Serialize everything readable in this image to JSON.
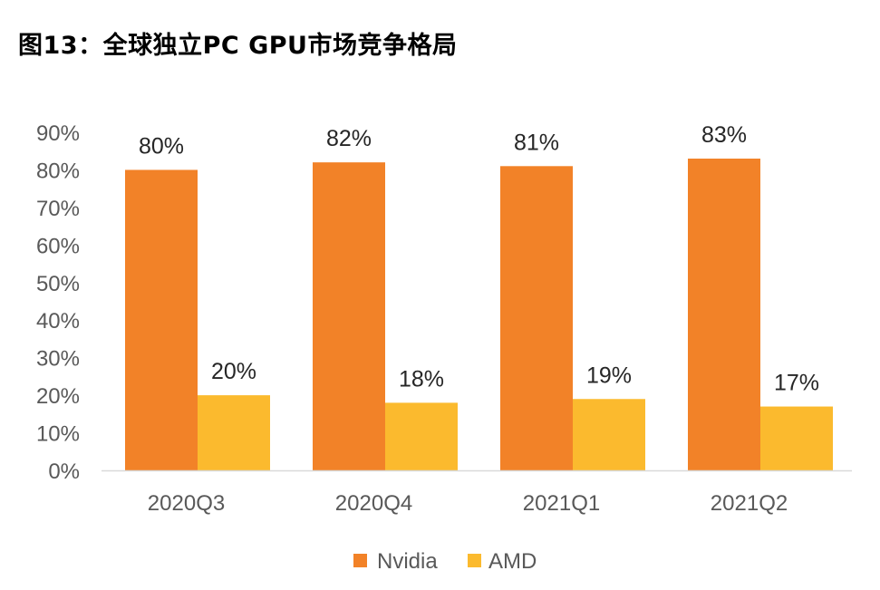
{
  "figure": {
    "title": "图13：全球独立PC GPU市场竞争格局"
  },
  "chart_data": {
    "type": "bar",
    "title": "图13：全球独立PC GPU市场竞争格局",
    "xlabel": "",
    "ylabel": "",
    "categories": [
      "2020Q3",
      "2020Q4",
      "2021Q1",
      "2021Q2"
    ],
    "series": [
      {
        "name": "Nvidia",
        "values": [
          80,
          82,
          81,
          83
        ],
        "labels": [
          "80%",
          "82%",
          "81%",
          "83%"
        ],
        "color": "#F28228"
      },
      {
        "name": "AMD",
        "values": [
          20,
          18,
          19,
          17
        ],
        "labels": [
          "20%",
          "18%",
          "19%",
          "17%"
        ],
        "color": "#FBBA2E"
      }
    ],
    "ylim": [
      0,
      90
    ],
    "yticks": [
      0,
      10,
      20,
      30,
      40,
      50,
      60,
      70,
      80,
      90
    ],
    "ytick_labels": [
      "0%",
      "10%",
      "20%",
      "30%",
      "40%",
      "50%",
      "60%",
      "70%",
      "80%",
      "90%"
    ],
    "grid": false,
    "legend_position": "bottom-center",
    "axis_color": "#D9D9D9"
  }
}
